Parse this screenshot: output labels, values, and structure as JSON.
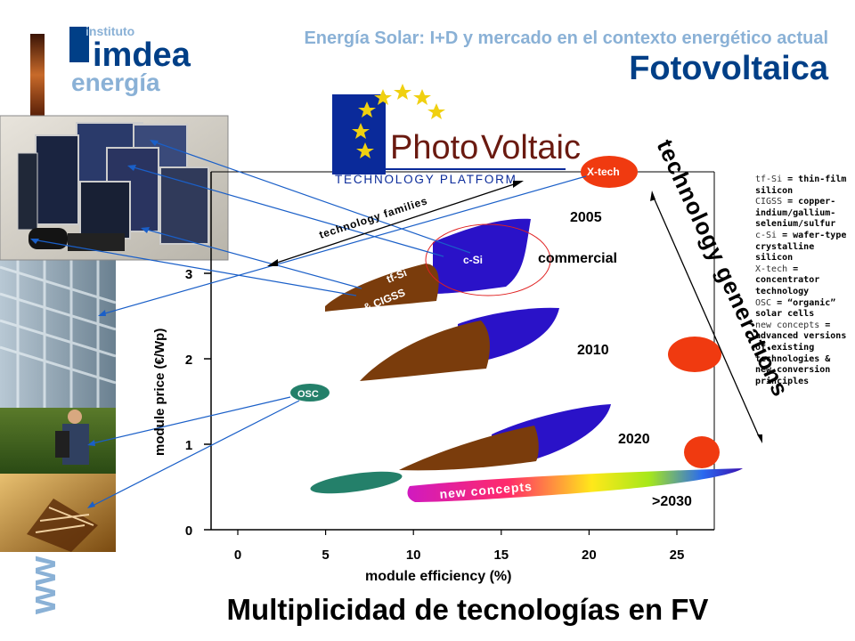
{
  "header": {
    "org_line1": "instituto",
    "org_brand": "imdea",
    "org_line2": "energía",
    "subtitle": "Energía Solar: I+D y mercado en el contexto energético actual",
    "title": "Fotovoltaica"
  },
  "platform_logo": {
    "name_part1": "Photo",
    "name_part2": "Voltaic",
    "tagline": "TECHNOLOGY PLATFORM"
  },
  "side_watermark": "ww",
  "chart_data": {
    "type": "scatter",
    "xlabel": "module efficiency (%)",
    "ylabel": "module price (€/Wp)",
    "x_ticks": [
      "0",
      "5",
      "10",
      "15",
      "20",
      "25"
    ],
    "y_ticks": [
      "0",
      "1",
      "2",
      "3"
    ],
    "xlim": [
      0,
      27
    ],
    "ylim": [
      0,
      4.2
    ],
    "year_labels": [
      "2005",
      "2010",
      "2020",
      ">2030"
    ],
    "region_labels": {
      "csi": "c-Si",
      "tfsi_line1": "tf-Si",
      "tfsi_line2": "& CIGSS",
      "xtech": "X-tech",
      "osc": "OSC",
      "new_concepts": "new concepts",
      "commercial": "commercial"
    },
    "arrow_labels": {
      "families": "technology families",
      "generations": "technology generations"
    },
    "colors": {
      "csi": "#2a12c8",
      "tfsi": "#7a3c0c",
      "xtech": "#f03a10",
      "osc": "#24806a",
      "arrow": "#1a5fc8"
    }
  },
  "glossary": [
    {
      "term": "tf-Si",
      "def": " = thin-film silicon"
    },
    {
      "term": "CIGSS",
      "def": " = copper-indium/gallium-selenium/sulfur"
    },
    {
      "term": "c-Si",
      "def": " = wafer-type crystalline silicon"
    },
    {
      "term": "X-tech",
      "def": " = concentrator technology"
    },
    {
      "term": "OSC",
      "def": " = “organic” solar cells"
    },
    {
      "term": "new concepts",
      "def": " = advanced versions of existing technologies & new conversion principles"
    }
  ],
  "footer": {
    "title": "Multiplicidad de tecnologías en FV"
  }
}
